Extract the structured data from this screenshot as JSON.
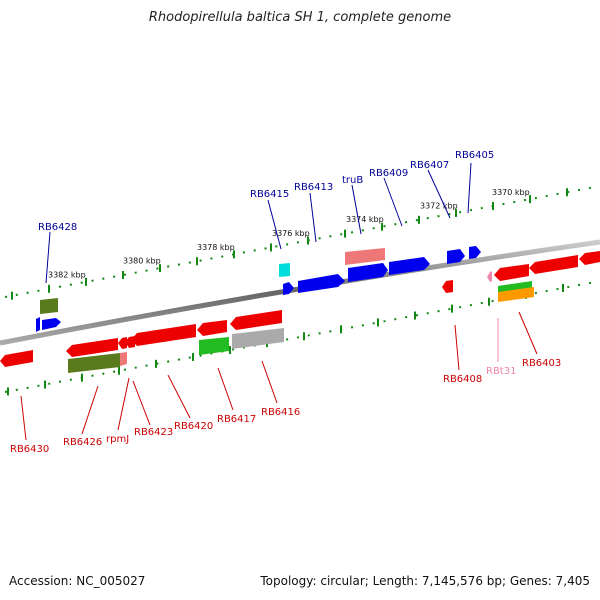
{
  "title": "Rhodopirellula baltica SH 1, complete genome",
  "footer": {
    "accession": "Accession: NC_005027",
    "summary": "Topology: circular; Length: 7,145,576 bp; Genes: 7,405"
  },
  "colors": {
    "blue": "#0000ee",
    "red": "#ee0000",
    "green": "#22bb22",
    "olive": "#5a7a1e",
    "pink": "#ee7777",
    "cyan": "#00dddd",
    "gray": "#aaaaaa",
    "orange": "#ff9900",
    "label_top": "#000099",
    "label_bottom": "#cc0000",
    "label_rna": "#ee88aa"
  },
  "scale_labels": [
    "3370 kbp",
    "3372 kbp",
    "3374 kbp",
    "3376 kbp",
    "3378 kbp",
    "3380 kbp",
    "3382 kbp"
  ],
  "top_genes": [
    "RB6405",
    "RB6407",
    "RB6409",
    "truB",
    "RB6413",
    "RB6415",
    "RB6428"
  ],
  "bottom_genes": [
    "RB6403",
    "RBt31",
    "RB6408",
    "RB6416",
    "RB6417",
    "RB6420",
    "RB6423",
    "rpmJ",
    "RB6426",
    "RB6430"
  ]
}
